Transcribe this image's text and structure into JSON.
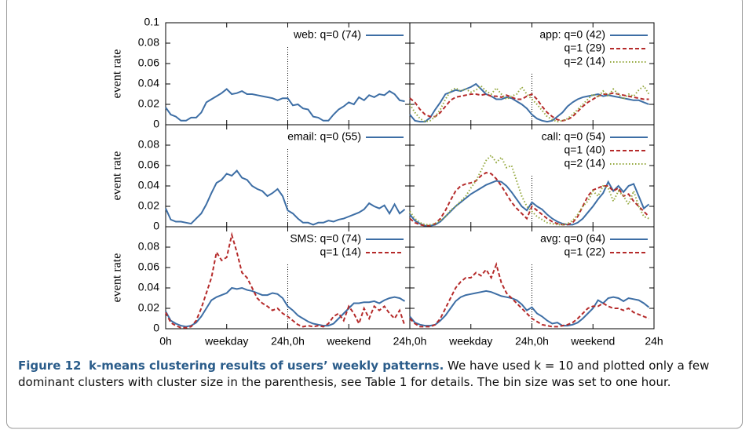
{
  "chart_data": [
    {
      "type": "line",
      "ylabel": "event rate",
      "xlim": [
        0,
        48
      ],
      "ylim": [
        0,
        0.1
      ],
      "xticks": [
        0,
        12,
        24,
        36,
        48
      ],
      "yticks": [
        0,
        0.02,
        0.04,
        0.06,
        0.08,
        0.1
      ],
      "legend": "upper right",
      "x": [
        0,
        1,
        2,
        3,
        4,
        5,
        6,
        7,
        8,
        9,
        10,
        11,
        12,
        13,
        14,
        15,
        16,
        17,
        18,
        19,
        20,
        21,
        22,
        23,
        24,
        25,
        26,
        27,
        28,
        29,
        30,
        31,
        32,
        33,
        34,
        35,
        36,
        37,
        38,
        39,
        40,
        41,
        42,
        43,
        44,
        45,
        46,
        47
      ],
      "series": [
        {
          "name": "web: q=0 (74)",
          "color": "#3d6ea5",
          "dash": "solid",
          "values": [
            0.017,
            0.01,
            0.008,
            0.004,
            0.004,
            0.007,
            0.007,
            0.012,
            0.022,
            0.025,
            0.028,
            0.031,
            0.035,
            0.03,
            0.031,
            0.033,
            0.03,
            0.03,
            0.029,
            0.028,
            0.027,
            0.026,
            0.024,
            0.026,
            0.026,
            0.019,
            0.02,
            0.016,
            0.015,
            0.008,
            0.007,
            0.004,
            0.004,
            0.01,
            0.015,
            0.018,
            0.022,
            0.02,
            0.027,
            0.024,
            0.029,
            0.027,
            0.03,
            0.029,
            0.033,
            0.03,
            0.024,
            0.023
          ]
        }
      ]
    },
    {
      "type": "line",
      "xlim": [
        0,
        48
      ],
      "ylim": [
        0,
        0.1
      ],
      "xticks": [
        0,
        12,
        24,
        36,
        48
      ],
      "yticks": [
        0,
        0.02,
        0.04,
        0.06,
        0.08,
        0.1
      ],
      "legend": "upper right",
      "x": [
        0,
        1,
        2,
        3,
        4,
        5,
        6,
        7,
        8,
        9,
        10,
        11,
        12,
        13,
        14,
        15,
        16,
        17,
        18,
        19,
        20,
        21,
        22,
        23,
        24,
        25,
        26,
        27,
        28,
        29,
        30,
        31,
        32,
        33,
        34,
        35,
        36,
        37,
        38,
        39,
        40,
        41,
        42,
        43,
        44,
        45,
        46,
        47
      ],
      "series": [
        {
          "name": "app: q=0 (42)",
          "color": "#3d6ea5",
          "dash": "solid",
          "values": [
            0.01,
            0.004,
            0.003,
            0.003,
            0.007,
            0.015,
            0.022,
            0.03,
            0.032,
            0.034,
            0.033,
            0.035,
            0.037,
            0.04,
            0.035,
            0.03,
            0.028,
            0.025,
            0.025,
            0.027,
            0.026,
            0.023,
            0.02,
            0.016,
            0.01,
            0.006,
            0.004,
            0.003,
            0.004,
            0.008,
            0.012,
            0.018,
            0.022,
            0.025,
            0.027,
            0.028,
            0.029,
            0.03,
            0.028,
            0.029,
            0.028,
            0.027,
            0.026,
            0.025,
            0.024,
            0.024,
            0.022,
            0.02
          ]
        },
        {
          "name": "q=1 (29)",
          "color": "#b52a2a",
          "dash": "dashed",
          "values": [
            0.026,
            0.022,
            0.015,
            0.01,
            0.008,
            0.008,
            0.012,
            0.018,
            0.024,
            0.027,
            0.028,
            0.029,
            0.03,
            0.03,
            0.029,
            0.03,
            0.028,
            0.028,
            0.027,
            0.029,
            0.027,
            0.025,
            0.025,
            0.028,
            0.03,
            0.025,
            0.018,
            0.012,
            0.008,
            0.005,
            0.004,
            0.005,
            0.008,
            0.013,
            0.018,
            0.022,
            0.025,
            0.028,
            0.03,
            0.03,
            0.031,
            0.03,
            0.029,
            0.028,
            0.027,
            0.026,
            0.025,
            0.025
          ]
        },
        {
          "name": "q=2 (14)",
          "color": "#94a83e",
          "dash": "dotted",
          "values": [
            0.02,
            0.012,
            0.006,
            0.003,
            0.004,
            0.008,
            0.015,
            0.025,
            0.033,
            0.036,
            0.033,
            0.035,
            0.032,
            0.034,
            0.038,
            0.033,
            0.03,
            0.036,
            0.03,
            0.025,
            0.028,
            0.03,
            0.037,
            0.03,
            0.025,
            0.02,
            0.014,
            0.008,
            0.005,
            0.003,
            0.004,
            0.006,
            0.01,
            0.015,
            0.02,
            0.025,
            0.03,
            0.027,
            0.033,
            0.028,
            0.035,
            0.03,
            0.025,
            0.03,
            0.028,
            0.034,
            0.038,
            0.03
          ]
        }
      ]
    },
    {
      "type": "line",
      "ylabel": "event rate",
      "xlim": [
        0,
        48
      ],
      "ylim": [
        0,
        0.1
      ],
      "xticks": [
        0,
        12,
        24,
        36,
        48
      ],
      "yticks": [
        0,
        0.02,
        0.04,
        0.06,
        0.08
      ],
      "legend": "upper right",
      "x": [
        0,
        1,
        2,
        3,
        4,
        5,
        6,
        7,
        8,
        9,
        10,
        11,
        12,
        13,
        14,
        15,
        16,
        17,
        18,
        19,
        20,
        21,
        22,
        23,
        24,
        25,
        26,
        27,
        28,
        29,
        30,
        31,
        32,
        33,
        34,
        35,
        36,
        37,
        38,
        39,
        40,
        41,
        42,
        43,
        44,
        45,
        46,
        47
      ],
      "series": [
        {
          "name": "email: q=0 (55)",
          "color": "#3d6ea5",
          "dash": "solid",
          "values": [
            0.018,
            0.007,
            0.005,
            0.005,
            0.004,
            0.003,
            0.008,
            0.013,
            0.022,
            0.033,
            0.043,
            0.046,
            0.052,
            0.05,
            0.055,
            0.048,
            0.046,
            0.04,
            0.037,
            0.035,
            0.03,
            0.033,
            0.037,
            0.03,
            0.016,
            0.013,
            0.008,
            0.004,
            0.004,
            0.002,
            0.004,
            0.004,
            0.006,
            0.005,
            0.007,
            0.008,
            0.01,
            0.012,
            0.014,
            0.017,
            0.023,
            0.02,
            0.018,
            0.021,
            0.013,
            0.022,
            0.013,
            0.017
          ]
        }
      ]
    },
    {
      "type": "line",
      "xlim": [
        0,
        48
      ],
      "ylim": [
        0,
        0.1
      ],
      "xticks": [
        0,
        12,
        24,
        36,
        48
      ],
      "yticks": [
        0,
        0.02,
        0.04,
        0.06,
        0.08
      ],
      "legend": "upper right",
      "x": [
        0,
        1,
        2,
        3,
        4,
        5,
        6,
        7,
        8,
        9,
        10,
        11,
        12,
        13,
        14,
        15,
        16,
        17,
        18,
        19,
        20,
        21,
        22,
        23,
        24,
        25,
        26,
        27,
        28,
        29,
        30,
        31,
        32,
        33,
        34,
        35,
        36,
        37,
        38,
        39,
        40,
        41,
        42,
        43,
        44,
        45,
        46,
        47
      ],
      "series": [
        {
          "name": "call: q=0 (54)",
          "color": "#3d6ea5",
          "dash": "solid",
          "values": [
            0.012,
            0.006,
            0.003,
            0.001,
            0.001,
            0.002,
            0.005,
            0.01,
            0.015,
            0.02,
            0.024,
            0.028,
            0.032,
            0.035,
            0.038,
            0.041,
            0.043,
            0.045,
            0.044,
            0.04,
            0.034,
            0.027,
            0.02,
            0.016,
            0.024,
            0.02,
            0.017,
            0.012,
            0.008,
            0.005,
            0.003,
            0.002,
            0.002,
            0.004,
            0.008,
            0.014,
            0.02,
            0.027,
            0.033,
            0.044,
            0.035,
            0.04,
            0.034,
            0.04,
            0.042,
            0.03,
            0.018,
            0.022
          ]
        },
        {
          "name": "q=1 (40)",
          "color": "#b52a2a",
          "dash": "dashed",
          "values": [
            0.008,
            0.004,
            0.002,
            0.001,
            0.001,
            0.003,
            0.008,
            0.016,
            0.026,
            0.035,
            0.04,
            0.042,
            0.043,
            0.045,
            0.05,
            0.053,
            0.052,
            0.047,
            0.04,
            0.032,
            0.024,
            0.018,
            0.013,
            0.008,
            0.02,
            0.016,
            0.012,
            0.008,
            0.005,
            0.003,
            0.002,
            0.002,
            0.004,
            0.01,
            0.02,
            0.03,
            0.036,
            0.038,
            0.04,
            0.04,
            0.035,
            0.038,
            0.03,
            0.032,
            0.025,
            0.02,
            0.015,
            0.01
          ]
        },
        {
          "name": "q=2 (14)",
          "color": "#94a83e",
          "dash": "dotted",
          "values": [
            0.015,
            0.008,
            0.004,
            0.002,
            0.002,
            0.003,
            0.006,
            0.01,
            0.016,
            0.02,
            0.025,
            0.03,
            0.038,
            0.045,
            0.055,
            0.065,
            0.07,
            0.063,
            0.068,
            0.058,
            0.06,
            0.045,
            0.03,
            0.02,
            0.015,
            0.01,
            0.007,
            0.004,
            0.003,
            0.002,
            0.002,
            0.003,
            0.006,
            0.012,
            0.02,
            0.025,
            0.035,
            0.03,
            0.04,
            0.038,
            0.025,
            0.035,
            0.03,
            0.022,
            0.035,
            0.02,
            0.01,
            0.008
          ]
        }
      ]
    },
    {
      "type": "line",
      "ylabel": "event rate",
      "xlim": [
        0,
        48
      ],
      "ylim": [
        0,
        0.1
      ],
      "xticks": [
        {
          "value": 0,
          "label": "0h"
        },
        {
          "value": 12,
          "label": "weekday"
        },
        {
          "value": 24,
          "label": "24h,0h"
        },
        {
          "value": 36,
          "label": "weekend"
        },
        {
          "value": 48,
          "label": "24h,0h"
        }
      ],
      "yticks": [
        0,
        0.02,
        0.04,
        0.06,
        0.08
      ],
      "legend": "upper right",
      "x": [
        0,
        1,
        2,
        3,
        4,
        5,
        6,
        7,
        8,
        9,
        10,
        11,
        12,
        13,
        14,
        15,
        16,
        17,
        18,
        19,
        20,
        21,
        22,
        23,
        24,
        25,
        26,
        27,
        28,
        29,
        30,
        31,
        32,
        33,
        34,
        35,
        36,
        37,
        38,
        39,
        40,
        41,
        42,
        43,
        44,
        45,
        46,
        47
      ],
      "series": [
        {
          "name": "SMS: q=0 (74)",
          "color": "#3d6ea5",
          "dash": "solid",
          "values": [
            0.017,
            0.008,
            0.005,
            0.003,
            0.002,
            0.003,
            0.006,
            0.012,
            0.02,
            0.028,
            0.031,
            0.033,
            0.035,
            0.04,
            0.039,
            0.04,
            0.038,
            0.037,
            0.035,
            0.033,
            0.033,
            0.035,
            0.034,
            0.03,
            0.022,
            0.018,
            0.013,
            0.01,
            0.007,
            0.005,
            0.004,
            0.003,
            0.003,
            0.005,
            0.01,
            0.015,
            0.02,
            0.025,
            0.025,
            0.026,
            0.026,
            0.027,
            0.025,
            0.028,
            0.03,
            0.031,
            0.03,
            0.027
          ]
        },
        {
          "name": "q=1 (14)",
          "color": "#b52a2a",
          "dash": "dashed",
          "values": [
            0.016,
            0.006,
            0.003,
            0.001,
            0.001,
            0.002,
            0.008,
            0.02,
            0.035,
            0.05,
            0.075,
            0.067,
            0.07,
            0.092,
            0.075,
            0.055,
            0.05,
            0.04,
            0.03,
            0.025,
            0.022,
            0.018,
            0.02,
            0.015,
            0.012,
            0.008,
            0.004,
            0.002,
            0.003,
            0.002,
            0.003,
            0.002,
            0.005,
            0.012,
            0.015,
            0.008,
            0.022,
            0.015,
            0.005,
            0.02,
            0.01,
            0.022,
            0.018,
            0.022,
            0.015,
            0.01,
            0.018,
            0.003
          ]
        }
      ]
    },
    {
      "type": "line",
      "xlim": [
        0,
        48
      ],
      "ylim": [
        0,
        0.1
      ],
      "xticks": [
        {
          "value": 12,
          "label": "weekday"
        },
        {
          "value": 24,
          "label": "24h,0h"
        },
        {
          "value": 36,
          "label": "weekend"
        },
        {
          "value": 48,
          "label": "24h"
        }
      ],
      "yticks": [
        0,
        0.02,
        0.04,
        0.06,
        0.08
      ],
      "legend": "upper right",
      "x": [
        0,
        1,
        2,
        3,
        4,
        5,
        6,
        7,
        8,
        9,
        10,
        11,
        12,
        13,
        14,
        15,
        16,
        17,
        18,
        19,
        20,
        21,
        22,
        23,
        24,
        25,
        26,
        27,
        28,
        29,
        30,
        31,
        32,
        33,
        34,
        35,
        36,
        37,
        38,
        39,
        40,
        41,
        42,
        43,
        44,
        45,
        46,
        47
      ],
      "series": [
        {
          "name": "avg: q=0 (64)",
          "color": "#3d6ea5",
          "dash": "solid",
          "values": [
            0.012,
            0.006,
            0.004,
            0.003,
            0.003,
            0.004,
            0.008,
            0.013,
            0.02,
            0.027,
            0.031,
            0.033,
            0.034,
            0.035,
            0.036,
            0.037,
            0.036,
            0.034,
            0.032,
            0.031,
            0.03,
            0.028,
            0.024,
            0.018,
            0.021,
            0.015,
            0.012,
            0.008,
            0.005,
            0.006,
            0.003,
            0.003,
            0.004,
            0.006,
            0.01,
            0.015,
            0.02,
            0.028,
            0.025,
            0.03,
            0.031,
            0.03,
            0.027,
            0.03,
            0.029,
            0.028,
            0.025,
            0.021
          ]
        },
        {
          "name": "q=1 (22)",
          "color": "#b52a2a",
          "dash": "dashed",
          "values": [
            0.01,
            0.005,
            0.002,
            0.002,
            0.002,
            0.004,
            0.01,
            0.02,
            0.03,
            0.04,
            0.046,
            0.05,
            0.05,
            0.055,
            0.052,
            0.058,
            0.05,
            0.063,
            0.045,
            0.035,
            0.03,
            0.025,
            0.02,
            0.015,
            0.01,
            0.007,
            0.004,
            0.003,
            0.002,
            0.002,
            0.003,
            0.004,
            0.006,
            0.01,
            0.015,
            0.02,
            0.022,
            0.022,
            0.025,
            0.022,
            0.02,
            0.02,
            0.018,
            0.02,
            0.016,
            0.014,
            0.012,
            0.01
          ]
        }
      ]
    }
  ],
  "caption": {
    "label": "Figure 12",
    "title": "k-means clustering results of users’ weekly patterns.",
    "text": "We have used k = 10 and plotted only a few dominant clusters with cluster size in the parenthesis, see Table 1 for details. The bin size was set to one hour."
  }
}
